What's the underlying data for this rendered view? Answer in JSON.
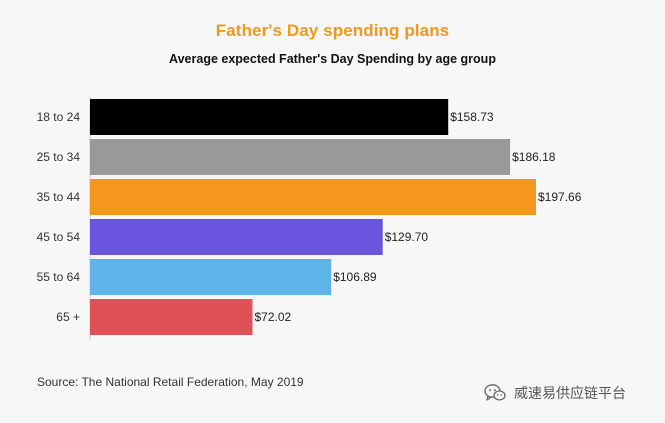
{
  "chart_data": {
    "type": "bar",
    "orientation": "horizontal",
    "title": "Father's Day spending plans",
    "subtitle": "Average expected Father's Day Spending by age group",
    "categories": [
      "18 to 24",
      "25 to 34",
      "35 to 44",
      "45 to 54",
      "55 to 64",
      "65 +"
    ],
    "values": [
      158.73,
      186.18,
      197.66,
      129.7,
      106.89,
      72.02
    ],
    "value_labels": [
      "$158.73",
      "$186.18",
      "$197.66",
      "$129.70",
      "$106.89",
      "$72.02"
    ],
    "colors": [
      "#000000",
      "#999999",
      "#f5961e",
      "#6a55de",
      "#5db4e8",
      "#de5156"
    ],
    "xlim": [
      0,
      197.66
    ],
    "grid": false,
    "legend": "none",
    "title_color": "#f0991f"
  },
  "source": "Source: The National Retail Federation, May 2019",
  "watermark": {
    "text": "威速易供应链平台",
    "icon": "wechat-icon"
  }
}
